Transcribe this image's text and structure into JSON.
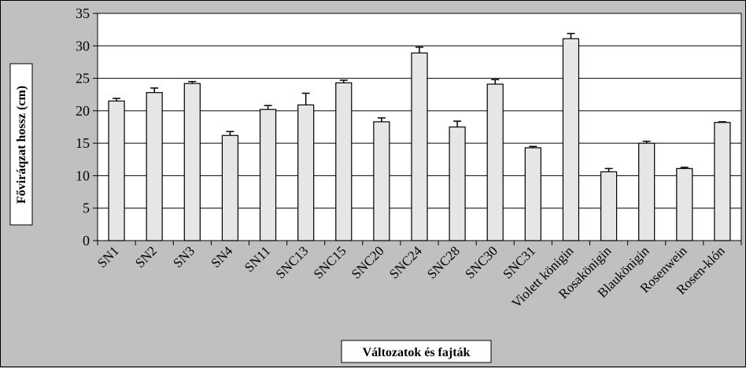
{
  "chart_data": {
    "type": "bar",
    "xlabel": "Változatok és fajták",
    "ylabel": "Főviráqzat hossz (cm)",
    "ylim": [
      0,
      35
    ],
    "yticks": [
      0,
      5,
      10,
      15,
      20,
      25,
      30,
      35
    ],
    "grid": true,
    "legend": "none",
    "categories": [
      "SN1",
      "SN2",
      "SN3",
      "SN4",
      "SN11",
      "SNC13",
      "SNC15",
      "SNC20",
      "SNC24",
      "SNC28",
      "SNC30",
      "SNC31",
      "Violett königin",
      "Rosakönigin",
      "Blaukönigin",
      "Rosenwein",
      "Rosen-klón"
    ],
    "values": [
      21.5,
      22.8,
      24.2,
      16.2,
      20.2,
      20.9,
      24.3,
      18.3,
      28.9,
      17.5,
      24.1,
      14.3,
      31.1,
      10.6,
      15.0,
      11.1,
      18.2
    ],
    "errors": [
      0.4,
      0.7,
      0.3,
      0.6,
      0.6,
      1.8,
      0.4,
      0.6,
      0.9,
      0.9,
      0.7,
      0.2,
      0.8,
      0.5,
      0.3,
      0.2,
      0.1
    ],
    "colors": {
      "bar_fill": "#e6e6e6",
      "bar_stroke": "#000000",
      "plot_background": "#ffffff",
      "chart_background": "#c0c0c0",
      "gridline": "#000000"
    }
  }
}
